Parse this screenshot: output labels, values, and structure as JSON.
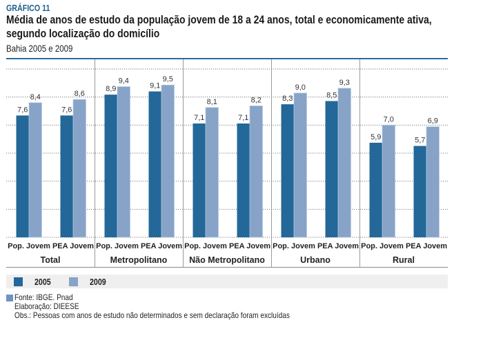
{
  "header": {
    "label": "GRÁFICO 11",
    "title_line1": "Média de anos de estudo da população jovem de 18 a 24 anos, total e economicamente ativa,",
    "title_line2": "segundo localização do domicílio",
    "subtitle": "Bahia 2005 e 2009"
  },
  "colors": {
    "series_2005": "#236898",
    "series_2009": "#87a3c8",
    "accent": "#1f5f8f"
  },
  "chart_data": {
    "type": "bar",
    "title": "Média de anos de estudo da população jovem de 18 a 24 anos, total e economicamente ativa, segundo localização do domicílio",
    "subtitle": "Bahia 2005 e 2009",
    "xlabel": "",
    "ylabel": "",
    "ylim": [
      0,
      10.5
    ],
    "y_axis_labels_shown": false,
    "grid": true,
    "legend_position": "bottom-left",
    "groups": [
      "Total",
      "Metropolitano",
      "Não Metropolitano",
      "Urbano",
      "Rural"
    ],
    "categories": [
      "Pop. Jovem",
      "PEA Jovem"
    ],
    "series": [
      {
        "name": "2005",
        "values": [
          [
            7.6,
            7.6
          ],
          [
            8.9,
            9.1
          ],
          [
            7.1,
            7.1
          ],
          [
            8.3,
            8.5
          ],
          [
            5.9,
            5.7
          ]
        ]
      },
      {
        "name": "2009",
        "values": [
          [
            8.4,
            8.6
          ],
          [
            9.4,
            9.5
          ],
          [
            8.1,
            8.2
          ],
          [
            9.0,
            9.3
          ],
          [
            7.0,
            6.9
          ]
        ]
      }
    ],
    "value_labels": [
      [
        [
          "7,6",
          "7,6"
        ],
        [
          "8,9",
          "9,1"
        ],
        [
          "7,1",
          "7,1"
        ],
        [
          "8,3",
          "8,5"
        ],
        [
          "5,9",
          "5,7"
        ]
      ],
      [
        [
          "8,4",
          "8,6"
        ],
        [
          "9,4",
          "9,5"
        ],
        [
          "8,1",
          "8,2"
        ],
        [
          "9,0",
          "9,3"
        ],
        [
          "7,0",
          "6,9"
        ]
      ]
    ]
  },
  "legend": {
    "items": [
      {
        "label": "2005"
      },
      {
        "label": "2009"
      }
    ]
  },
  "footer": {
    "source": "Fonte: IBGE. Pnad",
    "elaboration": "Elaboração: DIEESE",
    "note": "Obs.: Pessoas com anos de estudo não determinados e sem declaração foram excluídas"
  }
}
